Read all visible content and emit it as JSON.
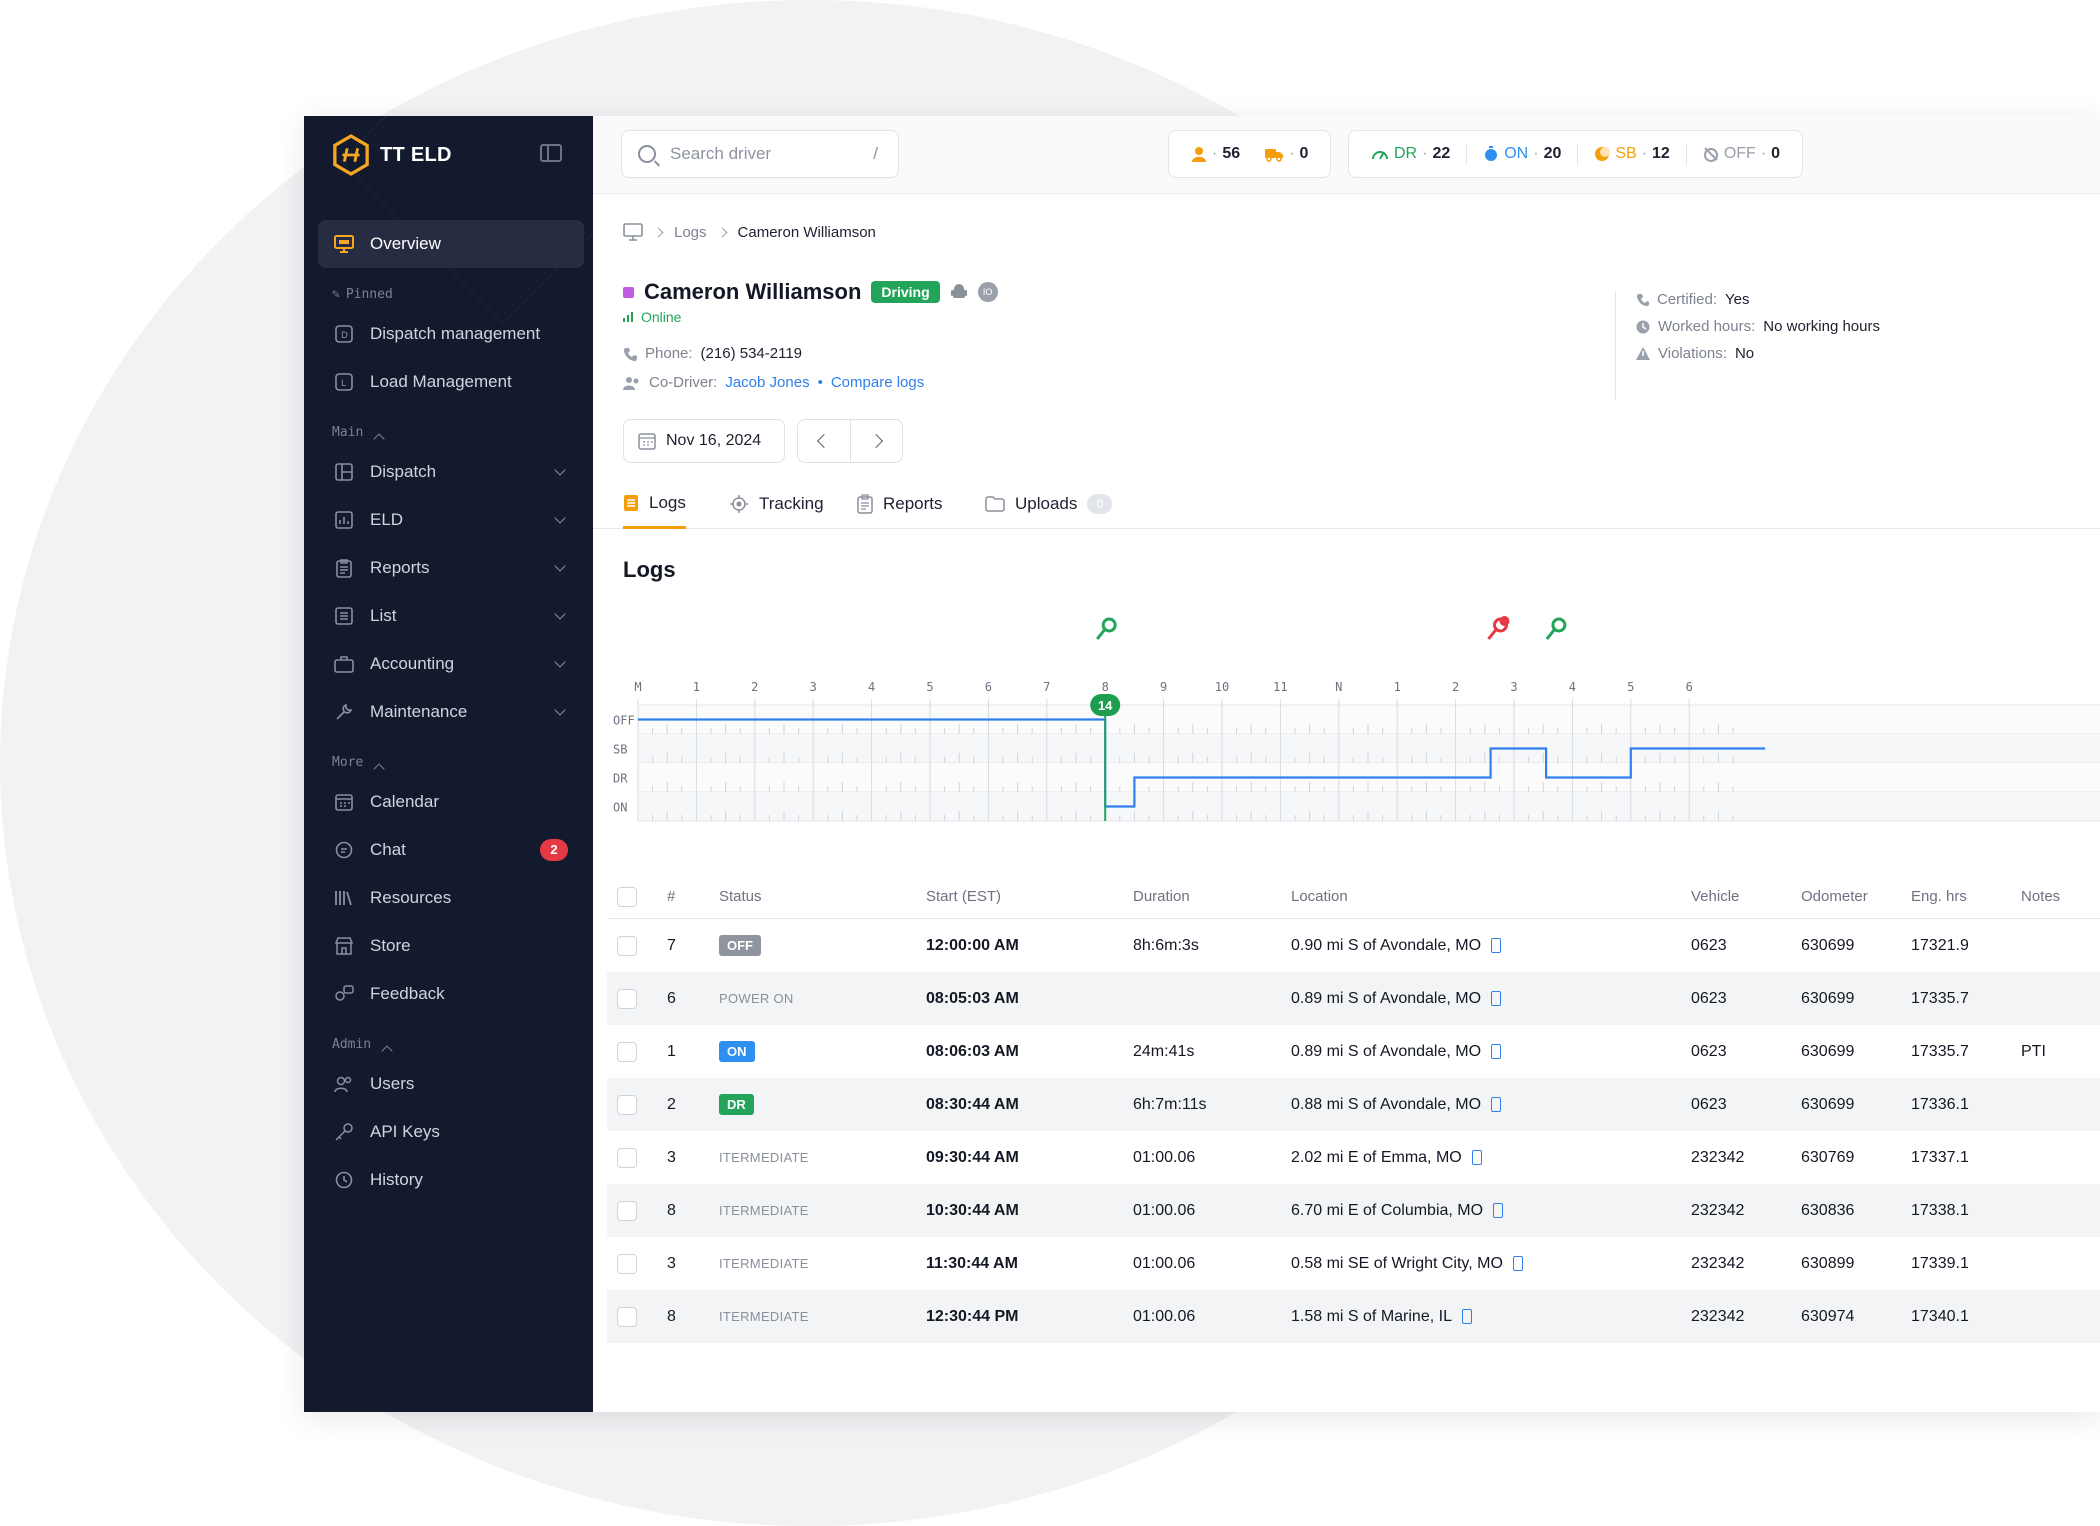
{
  "app": {
    "name": "TT ELD"
  },
  "sidebar": {
    "overview": "Overview",
    "pinned_label": "Pinned",
    "pinned": [
      "Dispatch management",
      "Load Management"
    ],
    "main_label": "Main",
    "main": [
      "Dispatch",
      "ELD",
      "Reports",
      "List",
      "Accounting",
      "Maintenance"
    ],
    "more_label": "More",
    "more": [
      "Calendar",
      "Chat",
      "Resources",
      "Store",
      "Feedback"
    ],
    "chat_badge": "2",
    "admin_label": "Admin",
    "admin": [
      "Users",
      "API Keys",
      "History"
    ]
  },
  "topbar": {
    "search_placeholder": "Search driver",
    "search_shortcut": "/",
    "drivers_count": "56",
    "trucks_count": "0",
    "dr_label": "DR",
    "dr_count": "22",
    "on_label": "ON",
    "on_count": "20",
    "sb_label": "SB",
    "sb_count": "12",
    "off_label": "OFF",
    "off_count": "0",
    "colors": {
      "dr": "#22a55a",
      "on": "#2f8ff0",
      "sb": "#f59e0b",
      "off": "#9aa0ac"
    }
  },
  "breadcrumb": {
    "section": "Logs",
    "current": "Cameron Williamson"
  },
  "driver": {
    "name": "Cameron Williamson",
    "status": "Driving",
    "device_badge": "IO",
    "online": "Online",
    "phone_label": "Phone:",
    "phone": "(216) 534-2119",
    "codriver_label": "Co-Driver:",
    "codriver": "Jacob Jones",
    "compare": "Compare logs",
    "certified_label": "Certified:",
    "certified": "Yes",
    "worked_label": "Worked hours:",
    "worked": "No working hours",
    "violations_label": "Violations:",
    "violations": "No"
  },
  "date": "Nov 16, 2024",
  "tabs": {
    "logs": "Logs",
    "tracking": "Tracking",
    "reports": "Reports",
    "uploads": "Uploads",
    "uploads_count": "0"
  },
  "logs_title": "Logs",
  "chart_data": {
    "type": "line",
    "title": "",
    "hours": [
      "M",
      "1",
      "2",
      "3",
      "4",
      "5",
      "6",
      "7",
      "8",
      "9",
      "10",
      "11",
      "N",
      "1",
      "2",
      "3",
      "4",
      "5",
      "6"
    ],
    "rows": [
      "OFF",
      "SB",
      "DR",
      "ON"
    ],
    "series": [
      {
        "points": [
          [
            0,
            "OFF"
          ],
          [
            8,
            "OFF"
          ],
          [
            8,
            "ON"
          ],
          [
            8.5,
            "ON"
          ],
          [
            8.5,
            "DR"
          ],
          [
            14.6,
            "DR"
          ],
          [
            14.6,
            "SB"
          ],
          [
            15.55,
            "SB"
          ],
          [
            15.55,
            "DR"
          ],
          [
            17,
            "DR"
          ],
          [
            17,
            "SB"
          ],
          [
            19.3,
            "SB"
          ]
        ]
      }
    ],
    "marker_label": "14",
    "marker_hour": 8,
    "events": [
      {
        "type": "key-on",
        "hour": 8
      },
      {
        "type": "key-off",
        "hour": 14.7
      },
      {
        "type": "key-on",
        "hour": 15.7
      }
    ]
  },
  "table": {
    "headers": [
      "#",
      "Status",
      "Start (EST)",
      "Duration",
      "Location",
      "Vehicle",
      "Odometer",
      "Eng. hrs",
      "Notes"
    ],
    "rows": [
      {
        "num": "7",
        "status": "OFF",
        "kind": "off",
        "start": "12:00:00 AM",
        "duration": "8h:6m:3s",
        "location": "0.90 mi S of Avondale, MO",
        "vehicle": "0623",
        "odometer": "630699",
        "eng": "17321.9",
        "notes": ""
      },
      {
        "num": "6",
        "status": "POWER ON",
        "kind": "txt",
        "start": "08:05:03 AM",
        "duration": "",
        "location": "0.89 mi S of Avondale, MO",
        "vehicle": "0623",
        "odometer": "630699",
        "eng": "17335.7",
        "notes": ""
      },
      {
        "num": "1",
        "status": "ON",
        "kind": "on",
        "start": "08:06:03 AM",
        "duration": "24m:41s",
        "location": "0.89 mi S of Avondale, MO",
        "vehicle": "0623",
        "odometer": "630699",
        "eng": "17335.7",
        "notes": "PTI"
      },
      {
        "num": "2",
        "status": "DR",
        "kind": "dr",
        "start": "08:30:44 AM",
        "duration": "6h:7m:11s",
        "location": "0.88 mi S of Avondale, MO",
        "vehicle": "0623",
        "odometer": "630699",
        "eng": "17336.1",
        "notes": ""
      },
      {
        "num": "3",
        "status": "ITERMEDIATE",
        "kind": "txt",
        "start": "09:30:44 AM",
        "duration": "01:00.06",
        "location": "2.02 mi E of Emma, MO",
        "vehicle": "232342",
        "odometer": "630769",
        "eng": "17337.1",
        "notes": ""
      },
      {
        "num": "8",
        "status": "ITERMEDIATE",
        "kind": "txt",
        "start": "10:30:44 AM",
        "duration": "01:00.06",
        "location": "6.70 mi E of Columbia, MO",
        "vehicle": "232342",
        "odometer": "630836",
        "eng": "17338.1",
        "notes": ""
      },
      {
        "num": "3",
        "status": "ITERMEDIATE",
        "kind": "txt",
        "start": "11:30:44 AM",
        "duration": "01:00.06",
        "location": "0.58 mi SE of Wright City, MO",
        "vehicle": "232342",
        "odometer": "630899",
        "eng": "17339.1",
        "notes": ""
      },
      {
        "num": "8",
        "status": "ITERMEDIATE",
        "kind": "txt",
        "start": "12:30:44 PM",
        "duration": "01:00.06",
        "location": "1.58 mi S of Marine, IL",
        "vehicle": "232342",
        "odometer": "630974",
        "eng": "17340.1",
        "notes": ""
      }
    ]
  }
}
